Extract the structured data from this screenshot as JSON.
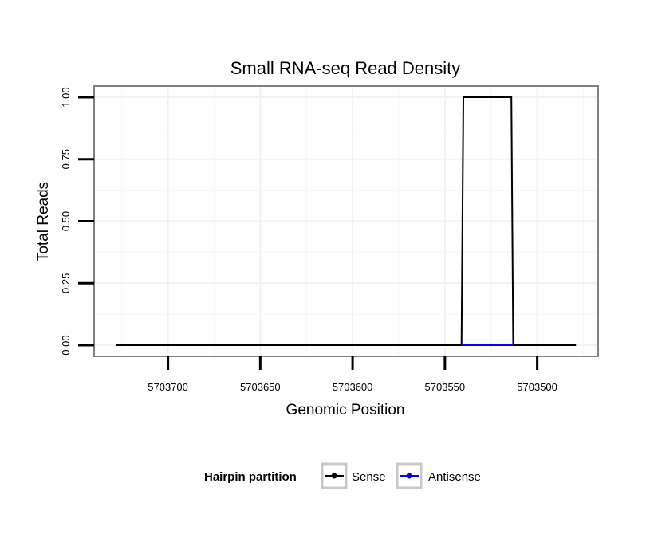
{
  "chart_data": {
    "type": "line",
    "title": "Small RNA-seq Read Density",
    "xlabel": "Genomic Position",
    "ylabel": "Total Reads",
    "x_reversed": true,
    "xlim": [
      5703740,
      5703467
    ],
    "ylim": [
      -0.045,
      1.045
    ],
    "x_ticks": [
      5703700,
      5703650,
      5703600,
      5703550,
      5703500
    ],
    "x_tick_labels": [
      "5703700",
      "5703650",
      "5703600",
      "5703550",
      "5703500"
    ],
    "y_ticks": [
      0,
      0.25,
      0.5,
      0.75,
      1
    ],
    "y_tick_labels": [
      "0.00",
      "0.25",
      "0.50",
      "0.75",
      "1.00"
    ],
    "grid": true,
    "series": [
      {
        "name": "Sense",
        "color": "#000000",
        "x": [
          5703728,
          5703541,
          5703540,
          5703514,
          5703513,
          5703479
        ],
        "y": [
          0,
          0,
          1,
          1,
          0,
          0
        ]
      },
      {
        "name": "Antisense",
        "color": "#0000ff",
        "x": [
          5703541,
          5703513
        ],
        "y": [
          0,
          0
        ]
      }
    ],
    "legend": {
      "title": "Hairpin partition",
      "position": "bottom",
      "entries": [
        "Sense",
        "Antisense"
      ]
    }
  }
}
